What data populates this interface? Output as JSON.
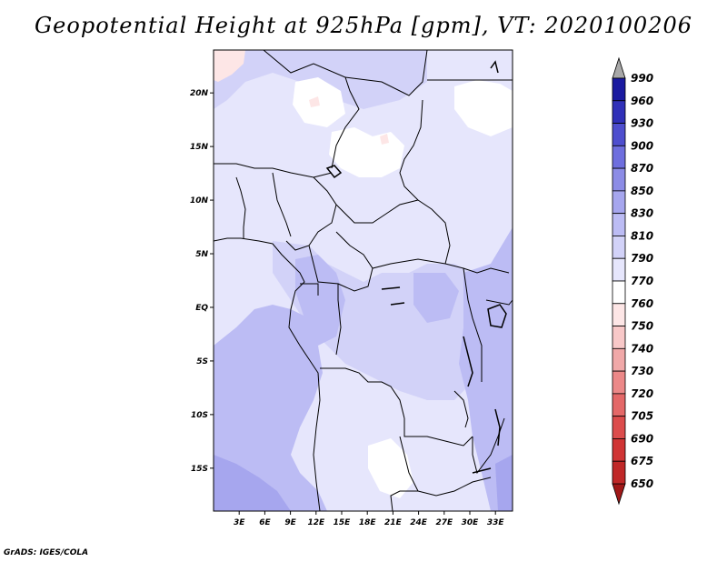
{
  "title": "Geopotential Height at 925hPa [gpm], VT: 2020100206",
  "footer": "GrADS: IGES/COLA",
  "map": {
    "lon_range": [
      0,
      35
    ],
    "lat_range": [
      -19,
      24
    ],
    "lat_ticks": [
      {
        "value": 20,
        "label": "20N"
      },
      {
        "value": 15,
        "label": "15N"
      },
      {
        "value": 10,
        "label": "10N"
      },
      {
        "value": 5,
        "label": "5N"
      },
      {
        "value": 0,
        "label": "EQ"
      },
      {
        "value": -5,
        "label": "5S"
      },
      {
        "value": -10,
        "label": "10S"
      },
      {
        "value": -15,
        "label": "15S"
      }
    ],
    "lon_ticks": [
      {
        "value": 3,
        "label": "3E"
      },
      {
        "value": 6,
        "label": "6E"
      },
      {
        "value": 9,
        "label": "9E"
      },
      {
        "value": 12,
        "label": "12E"
      },
      {
        "value": 15,
        "label": "15E"
      },
      {
        "value": 18,
        "label": "18E"
      },
      {
        "value": 21,
        "label": "21E"
      },
      {
        "value": 24,
        "label": "24E"
      },
      {
        "value": 27,
        "label": "27E"
      },
      {
        "value": 30,
        "label": "30E"
      },
      {
        "value": 33,
        "label": "33E"
      }
    ]
  },
  "colorbar": {
    "levels": [
      "650",
      "675",
      "690",
      "705",
      "720",
      "730",
      "740",
      "750",
      "760",
      "770",
      "790",
      "810",
      "830",
      "850",
      "870",
      "900",
      "930",
      "960",
      "990"
    ],
    "colors": [
      "#a01818",
      "#c02828",
      "#d03434",
      "#dc4c4c",
      "#e46868",
      "#ec8888",
      "#f0a8a8",
      "#f8c8c8",
      "#fde6e6",
      "#ffffff",
      "#e6e6fc",
      "#d2d2f8",
      "#bcbcf4",
      "#a6a6ee",
      "#8c8ce6",
      "#6e6ede",
      "#4e4ece",
      "#3030b8",
      "#1a1aa0",
      "#0a0a80"
    ],
    "upper_arrow_color": "#a8a8a8",
    "lower_arrow_color": "#a01818"
  },
  "field_colors": {
    "c790": "#e6e6fc",
    "c810": "#d2d2f8",
    "c830": "#bcbcf4",
    "c850": "#a6a6ee",
    "c770": "#ffffff",
    "c760": "#fde6e6"
  }
}
